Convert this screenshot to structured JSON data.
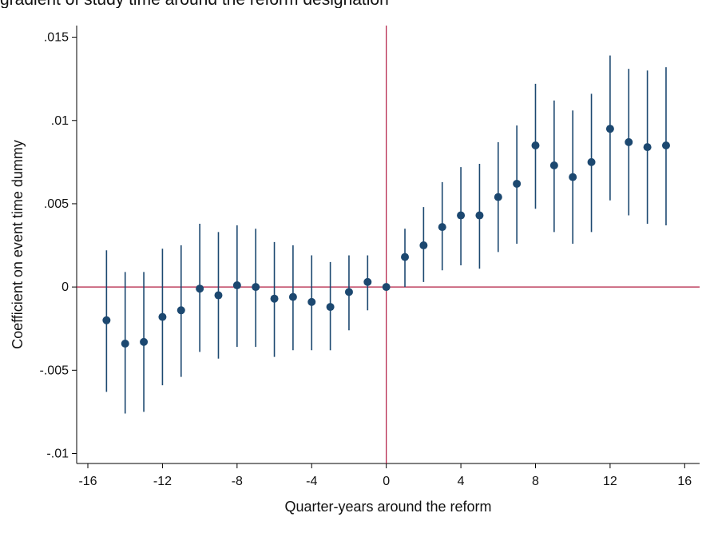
{
  "page": {
    "top_text": "gradient of study time around the reform designation"
  },
  "chart_data": {
    "type": "scatter",
    "title": "",
    "xlabel": "Quarter-years around the reform",
    "ylabel": "Coefficient on event time dummy",
    "xlim": [
      -16.6,
      16.8
    ],
    "ylim": [
      -0.0106,
      0.0157
    ],
    "xticks": [
      -16,
      -12,
      -8,
      -4,
      0,
      4,
      8,
      12,
      16
    ],
    "xtick_labels": [
      "-16",
      "-12",
      "-8",
      "-4",
      "0",
      "4",
      "8",
      "12",
      "16"
    ],
    "yticks": [
      -0.01,
      -0.005,
      0,
      0.005,
      0.01,
      0.015
    ],
    "ytick_labels": [
      "-.01",
      "-.005",
      "0",
      ".005",
      ".01",
      ".015"
    ],
    "grid": false,
    "reference_lines": {
      "x": 0,
      "y": 0
    },
    "colors": {
      "points": "#1c4870",
      "ci": "#1c4870",
      "reference": "#b0183f",
      "axis": "#000000"
    },
    "points": [
      {
        "x": -15,
        "y": -0.002,
        "lo": -0.0063,
        "hi": 0.0022
      },
      {
        "x": -14,
        "y": -0.0034,
        "lo": -0.0076,
        "hi": 0.0009
      },
      {
        "x": -13,
        "y": -0.0033,
        "lo": -0.0075,
        "hi": 0.0009
      },
      {
        "x": -12,
        "y": -0.0018,
        "lo": -0.0059,
        "hi": 0.0023
      },
      {
        "x": -11,
        "y": -0.0014,
        "lo": -0.0054,
        "hi": 0.0025
      },
      {
        "x": -10,
        "y": -0.0001,
        "lo": -0.0039,
        "hi": 0.0038
      },
      {
        "x": -9,
        "y": -0.0005,
        "lo": -0.0043,
        "hi": 0.0033
      },
      {
        "x": -8,
        "y": 0.0001,
        "lo": -0.0036,
        "hi": 0.0037
      },
      {
        "x": -7,
        "y": 0.0,
        "lo": -0.0036,
        "hi": 0.0035
      },
      {
        "x": -6,
        "y": -0.0007,
        "lo": -0.0042,
        "hi": 0.0027
      },
      {
        "x": -5,
        "y": -0.0006,
        "lo": -0.0038,
        "hi": 0.0025
      },
      {
        "x": -4,
        "y": -0.0009,
        "lo": -0.0038,
        "hi": 0.0019
      },
      {
        "x": -3,
        "y": -0.0012,
        "lo": -0.0038,
        "hi": 0.0015
      },
      {
        "x": -2,
        "y": -0.0003,
        "lo": -0.0026,
        "hi": 0.0019
      },
      {
        "x": -1,
        "y": 0.0003,
        "lo": -0.0014,
        "hi": 0.0019
      },
      {
        "x": 0,
        "y": 0.0,
        "lo": 0.0,
        "hi": 0.0
      },
      {
        "x": 1,
        "y": 0.0018,
        "lo": 0.0,
        "hi": 0.0035
      },
      {
        "x": 2,
        "y": 0.0025,
        "lo": 0.0003,
        "hi": 0.0048
      },
      {
        "x": 3,
        "y": 0.0036,
        "lo": 0.001,
        "hi": 0.0063
      },
      {
        "x": 4,
        "y": 0.0043,
        "lo": 0.0013,
        "hi": 0.0072
      },
      {
        "x": 5,
        "y": 0.0043,
        "lo": 0.0011,
        "hi": 0.0074
      },
      {
        "x": 6,
        "y": 0.0054,
        "lo": 0.0021,
        "hi": 0.0087
      },
      {
        "x": 7,
        "y": 0.0062,
        "lo": 0.0026,
        "hi": 0.0097
      },
      {
        "x": 8,
        "y": 0.0085,
        "lo": 0.0047,
        "hi": 0.0122
      },
      {
        "x": 9,
        "y": 0.0073,
        "lo": 0.0033,
        "hi": 0.0112
      },
      {
        "x": 10,
        "y": 0.0066,
        "lo": 0.0026,
        "hi": 0.0106
      },
      {
        "x": 11,
        "y": 0.0075,
        "lo": 0.0033,
        "hi": 0.0116
      },
      {
        "x": 12,
        "y": 0.0095,
        "lo": 0.0052,
        "hi": 0.0139
      },
      {
        "x": 13,
        "y": 0.0087,
        "lo": 0.0043,
        "hi": 0.0131
      },
      {
        "x": 14,
        "y": 0.0084,
        "lo": 0.0038,
        "hi": 0.013
      },
      {
        "x": 15,
        "y": 0.0085,
        "lo": 0.0037,
        "hi": 0.0132
      }
    ]
  }
}
